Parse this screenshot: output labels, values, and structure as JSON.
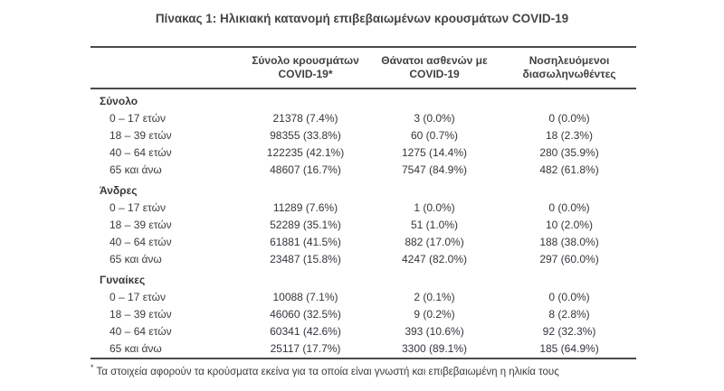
{
  "title": "Πίνακας 1: Ηλικιακή κατανομή επιβεβαιωμένων κρουσμάτων COVID-19",
  "table": {
    "columns": [
      {
        "line1": "Σύνολο κρουσμάτων",
        "line2": "COVID-19*"
      },
      {
        "line1": "Θάνατοι ασθενών με",
        "line2": "COVID-19"
      },
      {
        "line1": "Νοσηλευόμενοι",
        "line2": "διασωληνωθέντες"
      }
    ],
    "sections": [
      {
        "label": "Σύνολο",
        "rows": [
          {
            "age": "0 – 17 ετών",
            "cases": "21378 (7.4%)",
            "deaths": "3 (0.0%)",
            "intubated": "0 (0.0%)"
          },
          {
            "age": "18 – 39 ετών",
            "cases": "98355 (33.8%)",
            "deaths": "60 (0.7%)",
            "intubated": "18 (2.3%)"
          },
          {
            "age": "40 – 64 ετών",
            "cases": "122235 (42.1%)",
            "deaths": "1275 (14.4%)",
            "intubated": "280 (35.9%)"
          },
          {
            "age": "65 και άνω",
            "cases": "48607 (16.7%)",
            "deaths": "7547 (84.9%)",
            "intubated": "482 (61.8%)"
          }
        ]
      },
      {
        "label": "Άνδρες",
        "rows": [
          {
            "age": "0 – 17 ετών",
            "cases": "11289 (7.6%)",
            "deaths": "1 (0.0%)",
            "intubated": "0 (0.0%)"
          },
          {
            "age": "18 – 39 ετών",
            "cases": "52289 (35.1%)",
            "deaths": "51 (1.0%)",
            "intubated": "10 (2.0%)"
          },
          {
            "age": "40 – 64 ετών",
            "cases": "61881 (41.5%)",
            "deaths": "882 (17.0%)",
            "intubated": "188 (38.0%)"
          },
          {
            "age": "65 και άνω",
            "cases": "23487 (15.8%)",
            "deaths": "4247 (82.0%)",
            "intubated": "297 (60.0%)"
          }
        ]
      },
      {
        "label": "Γυναίκες",
        "rows": [
          {
            "age": "0 – 17 ετών",
            "cases": "10088 (7.1%)",
            "deaths": "2 (0.1%)",
            "intubated": "0 (0.0%)"
          },
          {
            "age": "18 – 39 ετών",
            "cases": "46060 (32.5%)",
            "deaths": "9 (0.2%)",
            "intubated": "8 (2.8%)"
          },
          {
            "age": "40 – 64 ετών",
            "cases": "60341 (42.6%)",
            "deaths": "393 (10.6%)",
            "intubated": "92 (32.3%)"
          },
          {
            "age": "65 και άνω",
            "cases": "25117 (17.7%)",
            "deaths": "3300 (89.1%)",
            "intubated": "185 (64.9%)"
          }
        ]
      }
    ]
  },
  "footnote": {
    "marker": "*",
    "text": "Τα στοιχεία αφορούν τα κρούσματα εκείνα για τα οποία είναι γνωστή και επιβεβαιωμένη η ηλικία τους"
  },
  "colors": {
    "text": "#3b3b3b",
    "rule": "#4a4a4a",
    "background": "#ffffff"
  }
}
